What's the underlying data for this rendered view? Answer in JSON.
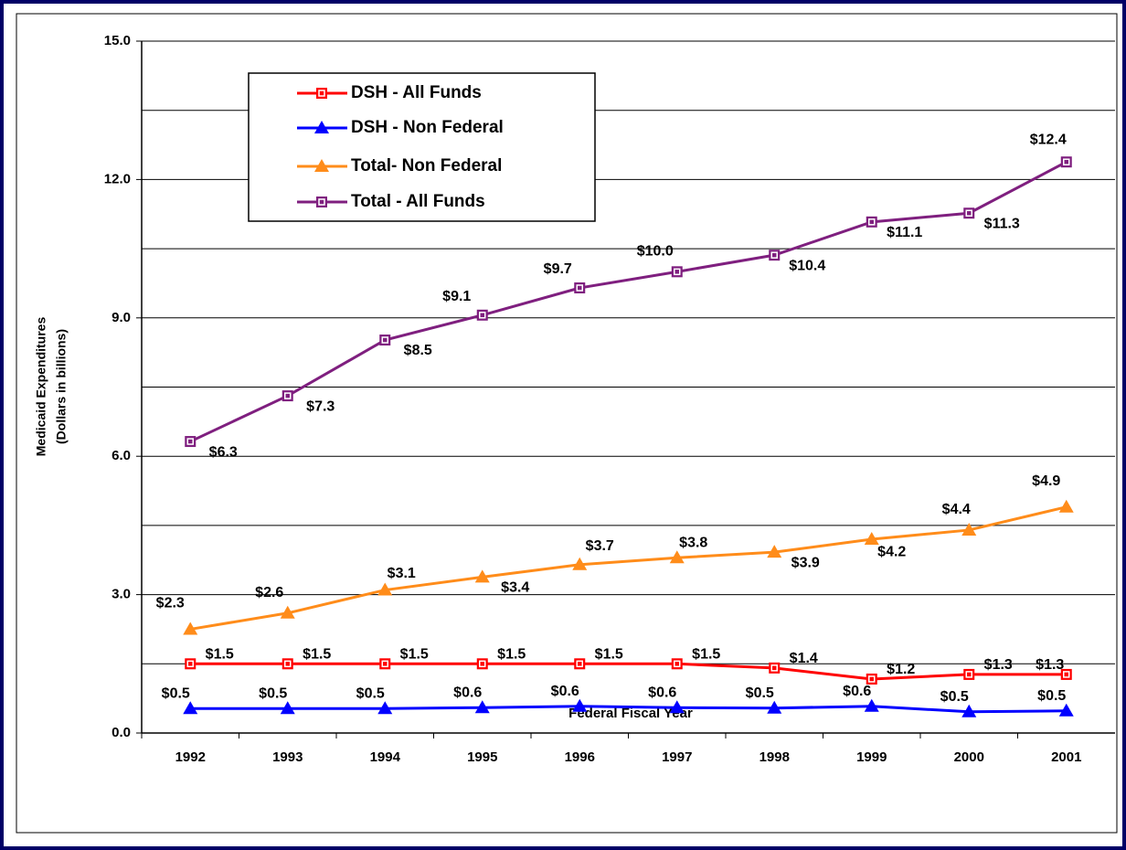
{
  "chart_data": {
    "type": "line",
    "xlabel": "Federal Fiscal Year",
    "ylabel": [
      "Medicaid Expenditures",
      "(Dollars in billions)"
    ],
    "categories": [
      "1992",
      "1993",
      "1994",
      "1995",
      "1996",
      "1997",
      "1998",
      "1999",
      "2000",
      "2001"
    ],
    "ylim": [
      0,
      15
    ],
    "yticks": [
      {
        "value": 0,
        "label": "0.0"
      },
      {
        "value": 3,
        "label": "3.0"
      },
      {
        "value": 6,
        "label": "6.0"
      },
      {
        "value": 9,
        "label": "9.0"
      },
      {
        "value": 12,
        "label": "12.0"
      },
      {
        "value": 15,
        "label": "15.0"
      }
    ],
    "minor_grid": [
      1.5,
      4.5,
      7.5,
      10.5,
      13.5
    ],
    "grid": true,
    "legend": "top-left",
    "series": [
      {
        "name": "DSH - All Funds",
        "color": "#ff0000",
        "marker": "square",
        "values": [
          1.5,
          1.5,
          1.5,
          1.5,
          1.5,
          1.5,
          1.41,
          1.17,
          1.27,
          1.27
        ],
        "value_labels": [
          "$1.5",
          "$1.5",
          "$1.5",
          "$1.5",
          "$1.5",
          "$1.5",
          "$1.4",
          "$1.2",
          "$1.3",
          "$1.3"
        ]
      },
      {
        "name": "DSH - Non Federal",
        "color": "#0000ff",
        "marker": "triangle",
        "values": [
          0.53,
          0.53,
          0.53,
          0.55,
          0.58,
          0.55,
          0.54,
          0.58,
          0.46,
          0.48
        ],
        "value_labels": [
          "$0.5",
          "$0.5",
          "$0.5",
          "$0.6",
          "$0.6",
          "$0.6",
          "$0.5",
          "$0.6",
          "$0.5",
          "$0.5"
        ]
      },
      {
        "name": "Total- Non Federal",
        "color": "#ff8c1a",
        "marker": "triangle",
        "values": [
          2.25,
          2.6,
          3.1,
          3.38,
          3.65,
          3.8,
          3.92,
          4.2,
          4.4,
          4.9
        ],
        "value_labels": [
          "$2.3",
          "$2.6",
          "$3.1",
          "$3.4",
          "$3.7",
          "$3.8",
          "$3.9",
          "$4.2",
          "$4.4",
          "$4.9"
        ]
      },
      {
        "name": "Total - All Funds",
        "color": "#7f1f7f",
        "marker": "square",
        "values": [
          6.32,
          7.31,
          8.52,
          9.06,
          9.65,
          10.0,
          10.36,
          11.08,
          11.27,
          12.38
        ],
        "value_labels": [
          "$6.3",
          "$7.3",
          "$8.5",
          "$9.1",
          "$9.7",
          "$10.0",
          "$10.4",
          "$11.1",
          "$11.3",
          "$12.4"
        ]
      }
    ]
  }
}
